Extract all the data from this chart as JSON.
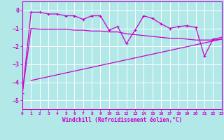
{
  "xlabel": "Windchill (Refroidissement éolien,°C)",
  "background_color": "#b2e8e8",
  "grid_color": "#ffffff",
  "line_color": "#cc00cc",
  "xlim": [
    0,
    23
  ],
  "ylim": [
    -5.5,
    0.5
  ],
  "yticks": [
    0,
    -1,
    -2,
    -3,
    -4,
    -5
  ],
  "xticks": [
    0,
    1,
    2,
    3,
    4,
    5,
    6,
    7,
    8,
    9,
    10,
    11,
    12,
    13,
    14,
    15,
    16,
    17,
    18,
    19,
    20,
    21,
    22,
    23
  ],
  "line1_x": [
    0,
    1,
    2,
    3,
    4,
    5,
    6,
    7,
    8,
    9,
    10,
    11,
    12,
    13,
    14,
    15,
    16,
    17,
    18,
    19,
    20,
    21,
    22,
    23
  ],
  "line1_y": [
    -4.6,
    -0.1,
    -0.1,
    -0.2,
    -0.2,
    -0.3,
    -0.3,
    -0.5,
    -0.3,
    -0.3,
    -1.1,
    -0.9,
    -1.85,
    -1.1,
    -0.3,
    -0.45,
    -0.75,
    -1.0,
    -0.9,
    -0.85,
    -0.95,
    -2.55,
    -1.6,
    -1.5
  ],
  "line2_x": [
    0,
    1,
    2,
    3,
    4,
    5,
    6,
    7,
    8,
    9,
    10,
    11,
    12,
    13,
    14,
    15,
    16,
    17,
    18,
    19,
    20,
    21,
    22,
    23
  ],
  "line2_y": [
    -4.6,
    -1.0,
    -1.05,
    -1.05,
    -1.05,
    -1.05,
    -1.1,
    -1.1,
    -1.15,
    -1.15,
    -1.2,
    -1.2,
    -1.3,
    -1.35,
    -1.4,
    -1.45,
    -1.5,
    -1.55,
    -1.55,
    -1.6,
    -1.65,
    -1.65,
    -1.65,
    -1.6
  ],
  "line3_x": [
    1,
    23
  ],
  "line3_y": [
    -3.9,
    -1.6
  ],
  "xlabel_fontsize": 5.5,
  "ylabel_tick_fontsize": 6,
  "xlabel_tick_fontsize": 4.5
}
